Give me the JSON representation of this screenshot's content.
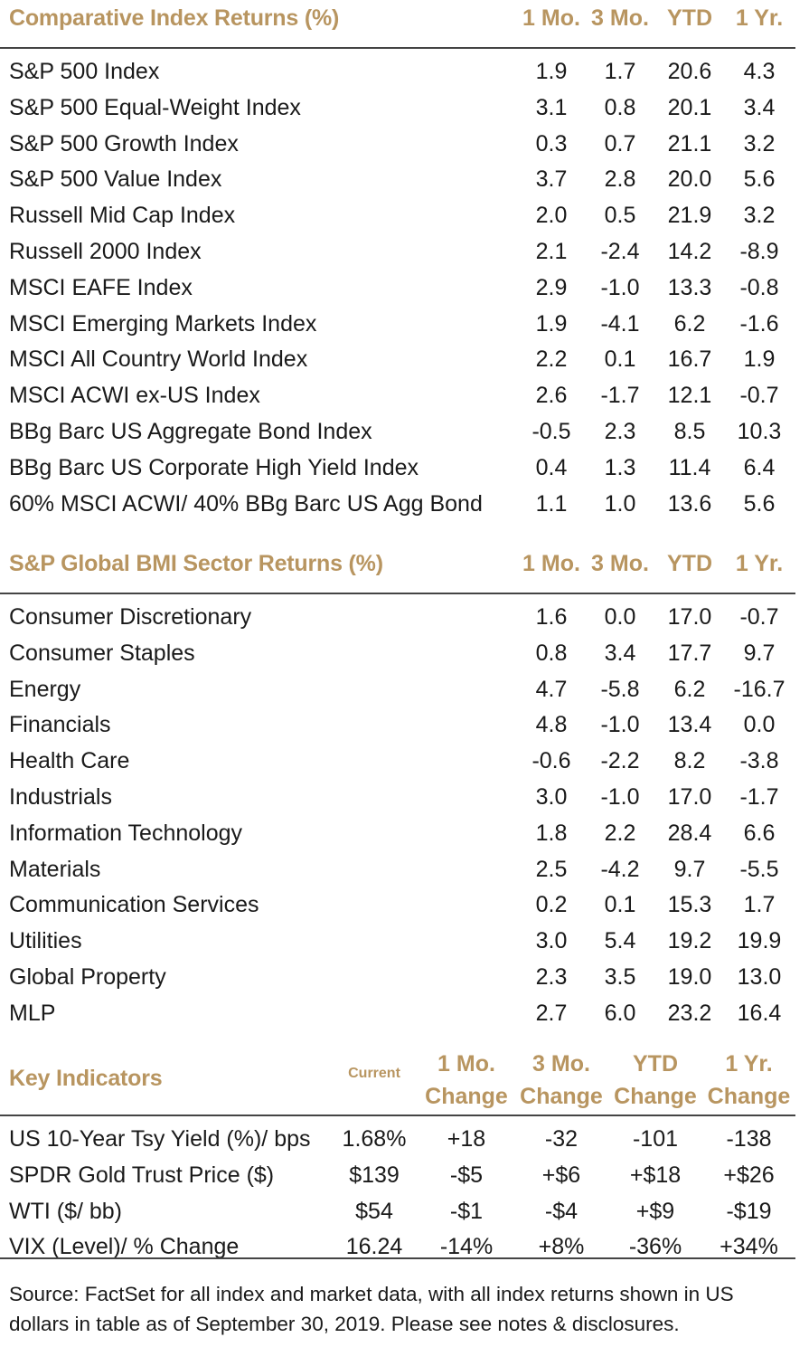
{
  "section1": {
    "title": "Comparative Index Returns (%)",
    "columns": [
      "1 Mo.",
      "3 Mo.",
      "YTD",
      "1 Yr."
    ],
    "rows": [
      {
        "name": "S&P 500 Index",
        "values": [
          "1.9",
          "1.7",
          "20.6",
          "4.3"
        ]
      },
      {
        "name": "S&P 500 Equal-Weight Index",
        "values": [
          "3.1",
          "0.8",
          "20.1",
          "3.4"
        ]
      },
      {
        "name": "S&P 500 Growth Index",
        "values": [
          "0.3",
          "0.7",
          "21.1",
          "3.2"
        ]
      },
      {
        "name": "S&P 500 Value Index",
        "values": [
          "3.7",
          "2.8",
          "20.0",
          "5.6"
        ]
      },
      {
        "name": "Russell Mid Cap Index",
        "values": [
          "2.0",
          "0.5",
          "21.9",
          "3.2"
        ]
      },
      {
        "name": "Russell 2000 Index",
        "values": [
          "2.1",
          "-2.4",
          "14.2",
          "-8.9"
        ]
      },
      {
        "name": "MSCI EAFE Index",
        "values": [
          "2.9",
          "-1.0",
          "13.3",
          "-0.8"
        ]
      },
      {
        "name": "MSCI Emerging Markets Index",
        "values": [
          "1.9",
          "-4.1",
          "6.2",
          "-1.6"
        ]
      },
      {
        "name": "MSCI All Country World Index",
        "values": [
          "2.2",
          "0.1",
          "16.7",
          "1.9"
        ]
      },
      {
        "name": "MSCI ACWI ex-US Index",
        "values": [
          "2.6",
          "-1.7",
          "12.1",
          "-0.7"
        ]
      },
      {
        "name": "BBg Barc US Aggregate Bond Index",
        "values": [
          "-0.5",
          "2.3",
          "8.5",
          "10.3"
        ]
      },
      {
        "name": "BBg Barc US Corporate High Yield Index",
        "values": [
          "0.4",
          "1.3",
          "11.4",
          "6.4"
        ]
      },
      {
        "name": "60% MSCI ACWI/ 40% BBg Barc US Agg Bond",
        "values": [
          "1.1",
          "1.0",
          "13.6",
          "5.6"
        ]
      }
    ]
  },
  "section2": {
    "title": "S&P Global BMI Sector Returns (%)",
    "columns": [
      "1 Mo.",
      "3 Mo.",
      "YTD",
      "1 Yr."
    ],
    "rows": [
      {
        "name": "Consumer Discretionary",
        "values": [
          "1.6",
          "0.0",
          "17.0",
          "-0.7"
        ]
      },
      {
        "name": "Consumer Staples",
        "values": [
          "0.8",
          "3.4",
          "17.7",
          "9.7"
        ]
      },
      {
        "name": "Energy",
        "values": [
          "4.7",
          "-5.8",
          "6.2",
          "-16.7"
        ]
      },
      {
        "name": "Financials",
        "values": [
          "4.8",
          "-1.0",
          "13.4",
          "0.0"
        ]
      },
      {
        "name": "Health Care",
        "values": [
          "-0.6",
          "-2.2",
          "8.2",
          "-3.8"
        ]
      },
      {
        "name": "Industrials",
        "values": [
          "3.0",
          "-1.0",
          "17.0",
          "-1.7"
        ]
      },
      {
        "name": "Information Technology",
        "values": [
          "1.8",
          "2.2",
          "28.4",
          "6.6"
        ]
      },
      {
        "name": "Materials",
        "values": [
          "2.5",
          "-4.2",
          "9.7",
          "-5.5"
        ]
      },
      {
        "name": "Communication Services",
        "values": [
          "0.2",
          "0.1",
          "15.3",
          "1.7"
        ]
      },
      {
        "name": "Utilities",
        "values": [
          "3.0",
          "5.4",
          "19.2",
          "19.9"
        ]
      },
      {
        "name": "Global Property",
        "values": [
          "2.3",
          "3.5",
          "19.0",
          "13.0"
        ]
      },
      {
        "name": "MLP",
        "values": [
          "2.7",
          "6.0",
          "23.2",
          "16.4"
        ]
      }
    ]
  },
  "section3": {
    "title": "Key Indicators",
    "current_label": "Current",
    "columns": [
      {
        "top": "1 Mo.",
        "bottom": "Change"
      },
      {
        "top": "3 Mo.",
        "bottom": "Change"
      },
      {
        "top": "YTD",
        "bottom": "Change"
      },
      {
        "top": "1 Yr.",
        "bottom": "Change"
      }
    ],
    "rows": [
      {
        "name": "US 10-Year Tsy Yield (%)/ bps",
        "current": "1.68%",
        "values": [
          "+18",
          "-32",
          "-101",
          "-138"
        ]
      },
      {
        "name": "SPDR Gold Trust Price ($)",
        "current": "$139",
        "values": [
          "-$5",
          "+$6",
          "+$18",
          "+$26"
        ]
      },
      {
        "name": "WTI ($/ bb)",
        "current": "$54",
        "values": [
          "-$1",
          "-$4",
          "+$9",
          "-$19"
        ]
      },
      {
        "name": "VIX (Level)/ % Change",
        "current": "16.24",
        "values": [
          "-14%",
          "+8%",
          "-36%",
          "+34%"
        ]
      }
    ]
  },
  "footnote": "Source: FactSet for all index and market data, with all index returns shown in US dollars in table as of September 30, 2019. Please see notes & disclosures.",
  "colors": {
    "accent": "#b89560",
    "text": "#1a1a1a",
    "rule": "#444444"
  }
}
